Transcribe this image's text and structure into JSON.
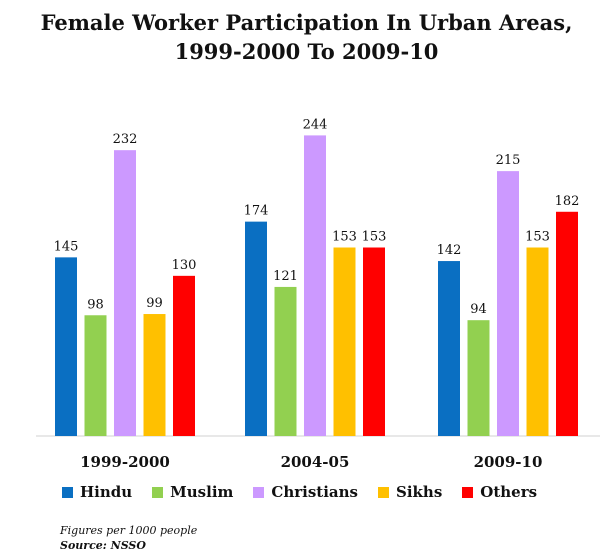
{
  "title_line1": "Female Worker Participation In Urban Areas,",
  "title_line2": "1999-2000 To 2009-10",
  "chart_data": {
    "type": "bar",
    "categories": [
      "1999-2000",
      "2004-05",
      "2009-10"
    ],
    "series": [
      {
        "name": "Hindu",
        "values": [
          145,
          174,
          142
        ],
        "color": "#0a6fc2"
      },
      {
        "name": "Muslim",
        "values": [
          98,
          121,
          94
        ],
        "color": "#92d050"
      },
      {
        "name": "Christians",
        "values": [
          232,
          244,
          215
        ],
        "color": "#cc99ff"
      },
      {
        "name": "Sikhs",
        "values": [
          99,
          153,
          153
        ],
        "color": "#ffc000"
      },
      {
        "name": "Others",
        "values": [
          130,
          153,
          182
        ],
        "color": "#ff0000"
      }
    ],
    "ylim": [
      0,
      260
    ],
    "grid": false,
    "legend_position": "bottom"
  },
  "notes": {
    "figures": "Figures per 1000 people",
    "source": "Source: NSSO"
  }
}
